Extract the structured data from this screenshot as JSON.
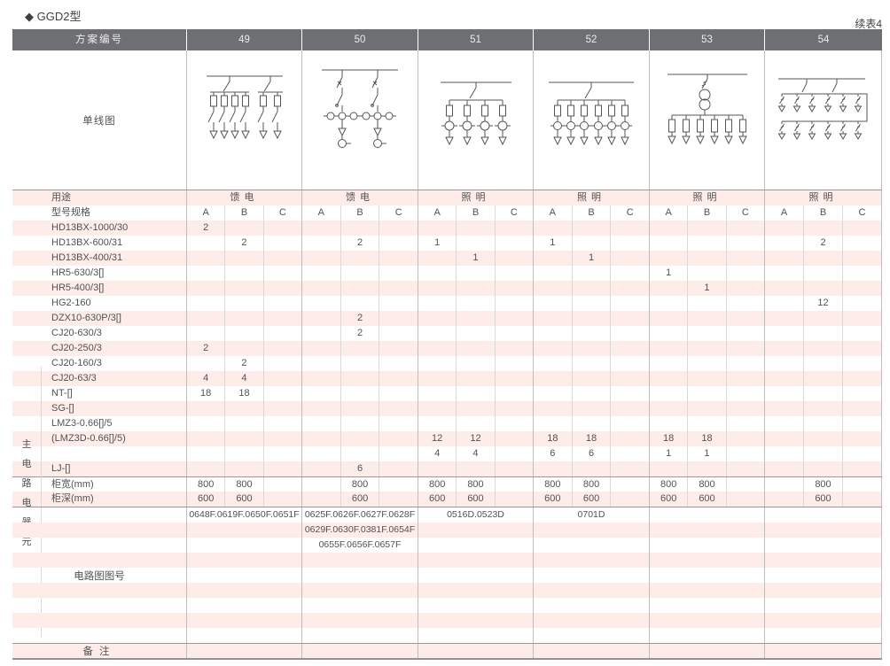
{
  "page": {
    "title": "◆ GGD2型",
    "continued": "续表4"
  },
  "palette": {
    "header_bg": "#6e6f72",
    "header_text": "#ececed",
    "stripe_pink": "#fdece8",
    "line_light": "#d7d9da",
    "line_mid": "#bcbec0",
    "line_dark": "#97999b",
    "text": "#515254",
    "diagram_stroke": "#55565a"
  },
  "table": {
    "corner_label": "方案编号",
    "schemes": [
      "49",
      "50",
      "51",
      "52",
      "53",
      "54"
    ],
    "single_line_label": "单线图",
    "diagram_names": [
      "feeder-group-switch-diagram",
      "feeder-metering-diagram",
      "lighting-4-branch-diagram",
      "lighting-6-branch-diagram",
      "lighting-transformer-diagram",
      "lighting-two-tier-diagram"
    ],
    "usage": {
      "label": "用途",
      "values": [
        "馈电",
        "馈电",
        "照明",
        "照明",
        "照明",
        "照明"
      ]
    },
    "spec": {
      "label": "型号规格",
      "subcols": [
        "A",
        "B",
        "C"
      ]
    },
    "side_label": "主电路电器元件",
    "component_rows": [
      {
        "label": "HD13BX-1000/30",
        "cells": [
          [
            "2",
            "",
            ""
          ],
          [
            "",
            "",
            ""
          ],
          [
            "",
            "",
            ""
          ],
          [
            "",
            "",
            ""
          ],
          [
            "",
            "",
            ""
          ],
          [
            "",
            "",
            ""
          ]
        ]
      },
      {
        "label": "HD13BX-600/31",
        "cells": [
          [
            "",
            "2",
            ""
          ],
          [
            "",
            "2",
            ""
          ],
          [
            "1",
            "",
            ""
          ],
          [
            "1",
            "",
            ""
          ],
          [
            "",
            "",
            ""
          ],
          [
            "",
            "2",
            ""
          ]
        ]
      },
      {
        "label": "HD13BX-400/31",
        "cells": [
          [
            "",
            "",
            ""
          ],
          [
            "",
            "",
            ""
          ],
          [
            "",
            "1",
            ""
          ],
          [
            "",
            "1",
            ""
          ],
          [
            "",
            "",
            ""
          ],
          [
            "",
            "",
            ""
          ]
        ]
      },
      {
        "label": "HR5-630/3[]",
        "cells": [
          [
            "",
            "",
            ""
          ],
          [
            "",
            "",
            ""
          ],
          [
            "",
            "",
            ""
          ],
          [
            "",
            "",
            ""
          ],
          [
            "1",
            "",
            ""
          ],
          [
            "",
            "",
            ""
          ]
        ]
      },
      {
        "label": "HR5-400/3[]",
        "cells": [
          [
            "",
            "",
            ""
          ],
          [
            "",
            "",
            ""
          ],
          [
            "",
            "",
            ""
          ],
          [
            "",
            "",
            ""
          ],
          [
            "",
            "1",
            ""
          ],
          [
            "",
            "",
            ""
          ]
        ]
      },
      {
        "label": "HG2-160",
        "cells": [
          [
            "",
            "",
            ""
          ],
          [
            "",
            "",
            ""
          ],
          [
            "",
            "",
            ""
          ],
          [
            "",
            "",
            ""
          ],
          [
            "",
            "",
            ""
          ],
          [
            "",
            "12",
            ""
          ]
        ]
      },
      {
        "label": "DZX10-630P/3[]",
        "cells": [
          [
            "",
            "",
            ""
          ],
          [
            "",
            "2",
            ""
          ],
          [
            "",
            "",
            ""
          ],
          [
            "",
            "",
            ""
          ],
          [
            "",
            "",
            ""
          ],
          [
            "",
            "",
            ""
          ]
        ]
      },
      {
        "label": "CJ20-630/3",
        "cells": [
          [
            "",
            "",
            ""
          ],
          [
            "",
            "2",
            ""
          ],
          [
            "",
            "",
            ""
          ],
          [
            "",
            "",
            ""
          ],
          [
            "",
            "",
            ""
          ],
          [
            "",
            "",
            ""
          ]
        ]
      },
      {
        "label": "CJ20-250/3",
        "cells": [
          [
            "2",
            "",
            ""
          ],
          [
            "",
            "",
            ""
          ],
          [
            "",
            "",
            ""
          ],
          [
            "",
            "",
            ""
          ],
          [
            "",
            "",
            ""
          ],
          [
            "",
            "",
            ""
          ]
        ]
      },
      {
        "label": "CJ20-160/3",
        "cells": [
          [
            "",
            "2",
            ""
          ],
          [
            "",
            "",
            ""
          ],
          [
            "",
            "",
            ""
          ],
          [
            "",
            "",
            ""
          ],
          [
            "",
            "",
            ""
          ],
          [
            "",
            "",
            ""
          ]
        ]
      },
      {
        "label": "CJ20-63/3",
        "cells": [
          [
            "4",
            "4",
            ""
          ],
          [
            "",
            "",
            ""
          ],
          [
            "",
            "",
            ""
          ],
          [
            "",
            "",
            ""
          ],
          [
            "",
            "",
            ""
          ],
          [
            "",
            "",
            ""
          ]
        ]
      },
      {
        "label": "NT-[]",
        "cells": [
          [
            "18",
            "18",
            ""
          ],
          [
            "",
            "",
            ""
          ],
          [
            "",
            "",
            ""
          ],
          [
            "",
            "",
            ""
          ],
          [
            "",
            "",
            ""
          ],
          [
            "",
            "",
            ""
          ]
        ]
      },
      {
        "label": "SG-[]",
        "cells": [
          [
            "",
            "",
            ""
          ],
          [
            "",
            "",
            ""
          ],
          [
            "",
            "",
            ""
          ],
          [
            "",
            "",
            ""
          ],
          [
            "",
            "",
            ""
          ],
          [
            "",
            "",
            ""
          ]
        ]
      },
      {
        "label": "LMZ3-0.66[]/5",
        "cells": [
          [
            "",
            "",
            ""
          ],
          [
            "",
            "",
            ""
          ],
          [
            "",
            "",
            ""
          ],
          [
            "",
            "",
            ""
          ],
          [
            "",
            "",
            ""
          ],
          [
            "",
            "",
            ""
          ]
        ]
      },
      {
        "label": "(LMZ3D-0.66[]/5)",
        "cells": [
          [
            "",
            "",
            ""
          ],
          [
            "",
            "",
            ""
          ],
          [
            "12",
            "12",
            ""
          ],
          [
            "18",
            "18",
            ""
          ],
          [
            "18",
            "18",
            ""
          ],
          [
            "",
            "",
            ""
          ]
        ]
      },
      {
        "label": "",
        "cells": [
          [
            "",
            "",
            ""
          ],
          [
            "",
            "",
            ""
          ],
          [
            "4",
            "4",
            ""
          ],
          [
            "6",
            "6",
            ""
          ],
          [
            "1",
            "1",
            ""
          ],
          [
            "",
            "",
            ""
          ]
        ]
      },
      {
        "label": "LJ-[]",
        "cells": [
          [
            "",
            "",
            ""
          ],
          [
            "",
            "6",
            ""
          ],
          [
            "",
            "",
            ""
          ],
          [
            "",
            "",
            ""
          ],
          [
            "",
            "",
            ""
          ],
          [
            "",
            "",
            ""
          ]
        ]
      }
    ],
    "size_rows": [
      {
        "label": "柜宽(mm)",
        "cells": [
          [
            "800",
            "800",
            ""
          ],
          [
            "",
            "800",
            ""
          ],
          [
            "800",
            "800",
            ""
          ],
          [
            "800",
            "800",
            ""
          ],
          [
            "800",
            "800",
            ""
          ],
          [
            "",
            "800",
            ""
          ]
        ]
      },
      {
        "label": "柜深(mm)",
        "cells": [
          [
            "600",
            "600",
            ""
          ],
          [
            "",
            "600",
            ""
          ],
          [
            "600",
            "600",
            ""
          ],
          [
            "600",
            "600",
            ""
          ],
          [
            "600",
            "600",
            ""
          ],
          [
            "",
            "600",
            ""
          ]
        ]
      }
    ],
    "circuit": {
      "label": "电路图图号",
      "rows": [
        [
          "0648F.0619F.0650F.0651F",
          "0625F.0626F.0627F.0628F",
          "0516D.0523D",
          "0701D",
          "",
          ""
        ],
        [
          "",
          "0629F.0630F.0381F.0654F",
          "",
          "",
          "",
          ""
        ],
        [
          "",
          "0655F.0656F.0657F",
          "",
          "",
          "",
          ""
        ],
        [
          "",
          "",
          "",
          "",
          "",
          ""
        ],
        [
          "",
          "",
          "",
          "",
          "",
          ""
        ],
        [
          "",
          "",
          "",
          "",
          "",
          ""
        ],
        [
          "",
          "",
          "",
          "",
          "",
          ""
        ],
        [
          "",
          "",
          "",
          "",
          "",
          ""
        ],
        [
          "",
          "",
          "",
          "",
          "",
          ""
        ]
      ]
    },
    "remark": {
      "label": "备注"
    }
  }
}
